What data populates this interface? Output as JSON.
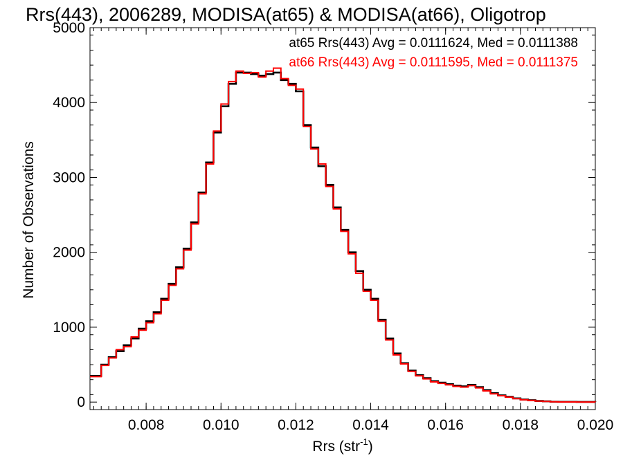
{
  "chart_data": {
    "type": "line",
    "step": true,
    "title": "Rrs(443), 2006289, MODISA(at65) & MODISA(at66), Oligotrop",
    "xlabel": "Rrs (str",
    "xlabel_sup": "-1",
    "xlabel_close": ")",
    "ylabel": "Number of Observations",
    "xlim": [
      0.0065,
      0.02
    ],
    "ylim": [
      -100,
      5000
    ],
    "xticks": [
      0.008,
      0.01,
      0.012,
      0.014,
      0.016,
      0.018,
      0.02
    ],
    "xtick_labels": [
      "0.008",
      "0.010",
      "0.012",
      "0.014",
      "0.016",
      "0.018",
      "0.020"
    ],
    "yticks": [
      0,
      1000,
      2000,
      3000,
      4000,
      5000
    ],
    "ytick_labels": [
      "0",
      "1000",
      "2000",
      "3000",
      "4000",
      "5000"
    ],
    "grid": false,
    "legend_position": "top-right",
    "annotations": [
      "at65 Rrs(443) Avg = 0.0111624, Med = 0.0111388",
      "at66 Rrs(443) Avg = 0.0111595, Med = 0.0111375"
    ],
    "series": [
      {
        "color": "#000000",
        "x": [
          0.0065,
          0.0068,
          0.007,
          0.0072,
          0.0074,
          0.0076,
          0.0078,
          0.008,
          0.0082,
          0.0084,
          0.0086,
          0.0088,
          0.009,
          0.0092,
          0.0094,
          0.0096,
          0.0098,
          0.01,
          0.0102,
          0.0104,
          0.0106,
          0.0108,
          0.011,
          0.0112,
          0.0114,
          0.0116,
          0.0118,
          0.012,
          0.0122,
          0.0124,
          0.0126,
          0.0128,
          0.013,
          0.0132,
          0.0134,
          0.0136,
          0.0138,
          0.014,
          0.0142,
          0.0144,
          0.0146,
          0.0148,
          0.015,
          0.0152,
          0.0154,
          0.0156,
          0.0158,
          0.016,
          0.0162,
          0.0164,
          0.0166,
          0.0168,
          0.017,
          0.0172,
          0.0174,
          0.0176,
          0.0178,
          0.018,
          0.0182,
          0.0184,
          0.0186,
          0.0188,
          0.019,
          0.0195,
          0.02
        ],
        "y": [
          350,
          500,
          600,
          680,
          760,
          850,
          980,
          1080,
          1200,
          1380,
          1580,
          1800,
          2050,
          2400,
          2800,
          3200,
          3600,
          3950,
          4250,
          4400,
          4400,
          4380,
          4360,
          4380,
          4400,
          4300,
          4250,
          4150,
          3700,
          3400,
          3150,
          2900,
          2600,
          2300,
          2000,
          1750,
          1500,
          1380,
          1100,
          850,
          650,
          520,
          420,
          360,
          320,
          280,
          260,
          240,
          220,
          210,
          230,
          200,
          160,
          120,
          90,
          70,
          50,
          35,
          25,
          15,
          10,
          5,
          3,
          2,
          1
        ]
      },
      {
        "color": "#ff0000",
        "x": [
          0.0065,
          0.0068,
          0.007,
          0.0072,
          0.0074,
          0.0076,
          0.0078,
          0.008,
          0.0082,
          0.0084,
          0.0086,
          0.0088,
          0.009,
          0.0092,
          0.0094,
          0.0096,
          0.0098,
          0.01,
          0.0102,
          0.0104,
          0.0106,
          0.0108,
          0.011,
          0.0112,
          0.0114,
          0.0116,
          0.0118,
          0.012,
          0.0122,
          0.0124,
          0.0126,
          0.0128,
          0.013,
          0.0132,
          0.0134,
          0.0136,
          0.0138,
          0.014,
          0.0142,
          0.0144,
          0.0146,
          0.0148,
          0.015,
          0.0152,
          0.0154,
          0.0156,
          0.0158,
          0.016,
          0.0162,
          0.0164,
          0.0166,
          0.0168,
          0.017,
          0.0172,
          0.0174,
          0.0176,
          0.0178,
          0.018,
          0.0182,
          0.0184,
          0.0186,
          0.0188,
          0.019,
          0.0195,
          0.02
        ],
        "y": [
          340,
          490,
          590,
          700,
          740,
          870,
          960,
          1060,
          1180,
          1360,
          1560,
          1780,
          2030,
          2380,
          2780,
          3180,
          3620,
          3980,
          4280,
          4420,
          4390,
          4400,
          4340,
          4420,
          4460,
          4320,
          4230,
          4180,
          3680,
          3380,
          3180,
          2880,
          2580,
          2280,
          1980,
          1720,
          1480,
          1360,
          1080,
          830,
          630,
          510,
          410,
          350,
          310,
          270,
          250,
          230,
          210,
          200,
          220,
          190,
          150,
          110,
          85,
          65,
          45,
          30,
          22,
          13,
          8,
          4,
          2,
          1,
          0
        ]
      }
    ]
  }
}
